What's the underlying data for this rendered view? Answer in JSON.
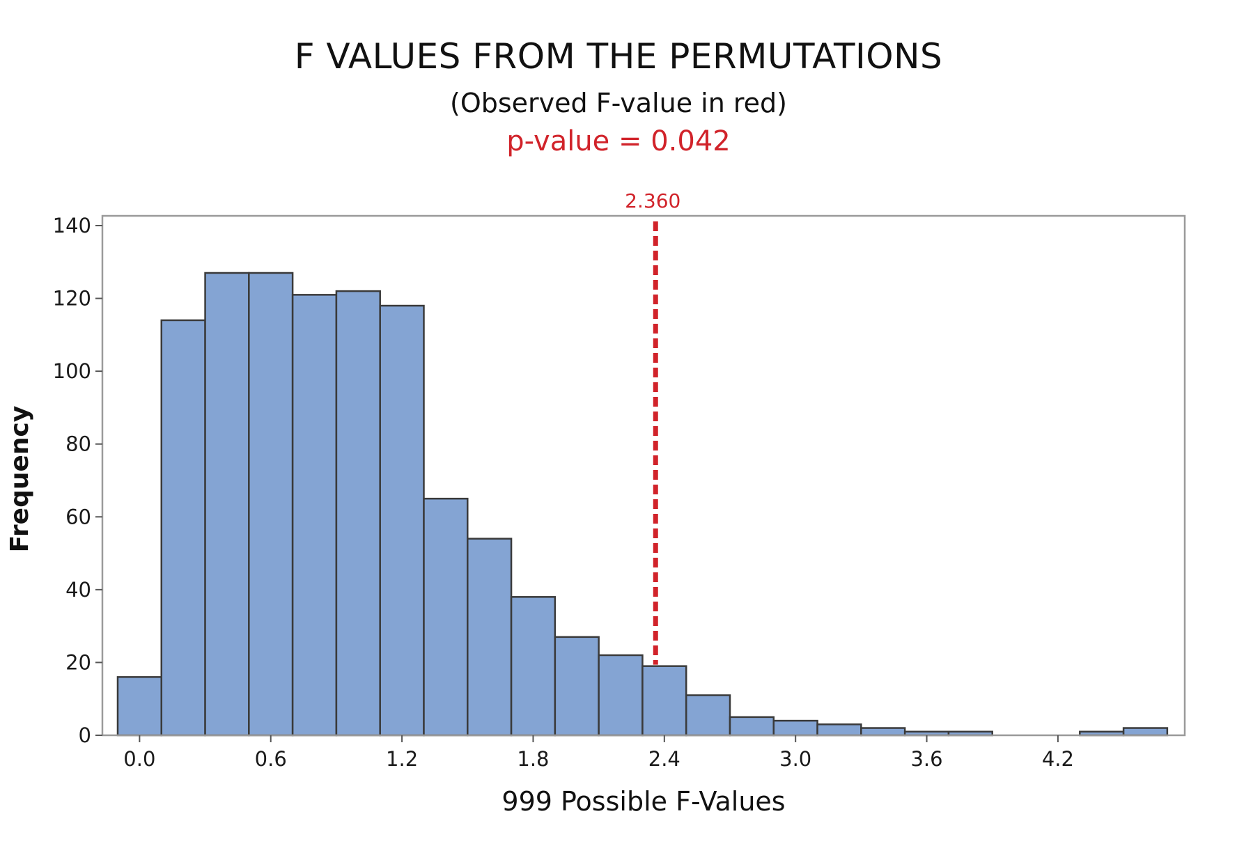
{
  "chart_data": {
    "type": "bar",
    "title": "F VALUES FROM THE PERMUTATIONS",
    "subtitle": "(Observed F-value in red)",
    "annotation": "p-value = 0.042",
    "xlabel": "999 Possible F-Values",
    "ylabel": "Frequency",
    "bin_width": 0.2,
    "bins": [
      {
        "start": -0.1,
        "end": 0.1,
        "count": 16
      },
      {
        "start": 0.1,
        "end": 0.3,
        "count": 114
      },
      {
        "start": 0.3,
        "end": 0.5,
        "count": 127
      },
      {
        "start": 0.5,
        "end": 0.7,
        "count": 127
      },
      {
        "start": 0.7,
        "end": 0.9,
        "count": 121
      },
      {
        "start": 0.9,
        "end": 1.1,
        "count": 122
      },
      {
        "start": 1.1,
        "end": 1.3,
        "count": 118
      },
      {
        "start": 1.3,
        "end": 1.5,
        "count": 65
      },
      {
        "start": 1.5,
        "end": 1.7,
        "count": 54
      },
      {
        "start": 1.7,
        "end": 1.9,
        "count": 38
      },
      {
        "start": 1.9,
        "end": 2.1,
        "count": 27
      },
      {
        "start": 2.1,
        "end": 2.3,
        "count": 22
      },
      {
        "start": 2.3,
        "end": 2.5,
        "count": 19
      },
      {
        "start": 2.5,
        "end": 2.7,
        "count": 11
      },
      {
        "start": 2.7,
        "end": 2.9,
        "count": 5
      },
      {
        "start": 2.9,
        "end": 3.1,
        "count": 4
      },
      {
        "start": 3.1,
        "end": 3.3,
        "count": 3
      },
      {
        "start": 3.3,
        "end": 3.5,
        "count": 2
      },
      {
        "start": 3.5,
        "end": 3.7,
        "count": 1
      },
      {
        "start": 3.7,
        "end": 3.9,
        "count": 1
      },
      {
        "start": 3.9,
        "end": 4.1,
        "count": 0
      },
      {
        "start": 4.1,
        "end": 4.3,
        "count": 0
      },
      {
        "start": 4.3,
        "end": 4.5,
        "count": 1
      },
      {
        "start": 4.5,
        "end": 4.7,
        "count": 2
      }
    ],
    "x_ticks": [
      "0.0",
      "0.6",
      "1.2",
      "1.8",
      "2.4",
      "3.0",
      "3.6",
      "4.2"
    ],
    "y_ticks": [
      "0",
      "20",
      "40",
      "60",
      "80",
      "100",
      "120",
      "140"
    ],
    "xlim": [
      -0.17,
      4.78
    ],
    "ylim": [
      0,
      140
    ],
    "reference_line": {
      "value": 2.36,
      "label": "2.360",
      "style": "dashed"
    },
    "grid": false,
    "colors": {
      "bar_fill": "#84a4d3",
      "bar_edge": "#3a3a3a",
      "reference": "#d1232a",
      "frame": "#9a9a9a"
    }
  }
}
